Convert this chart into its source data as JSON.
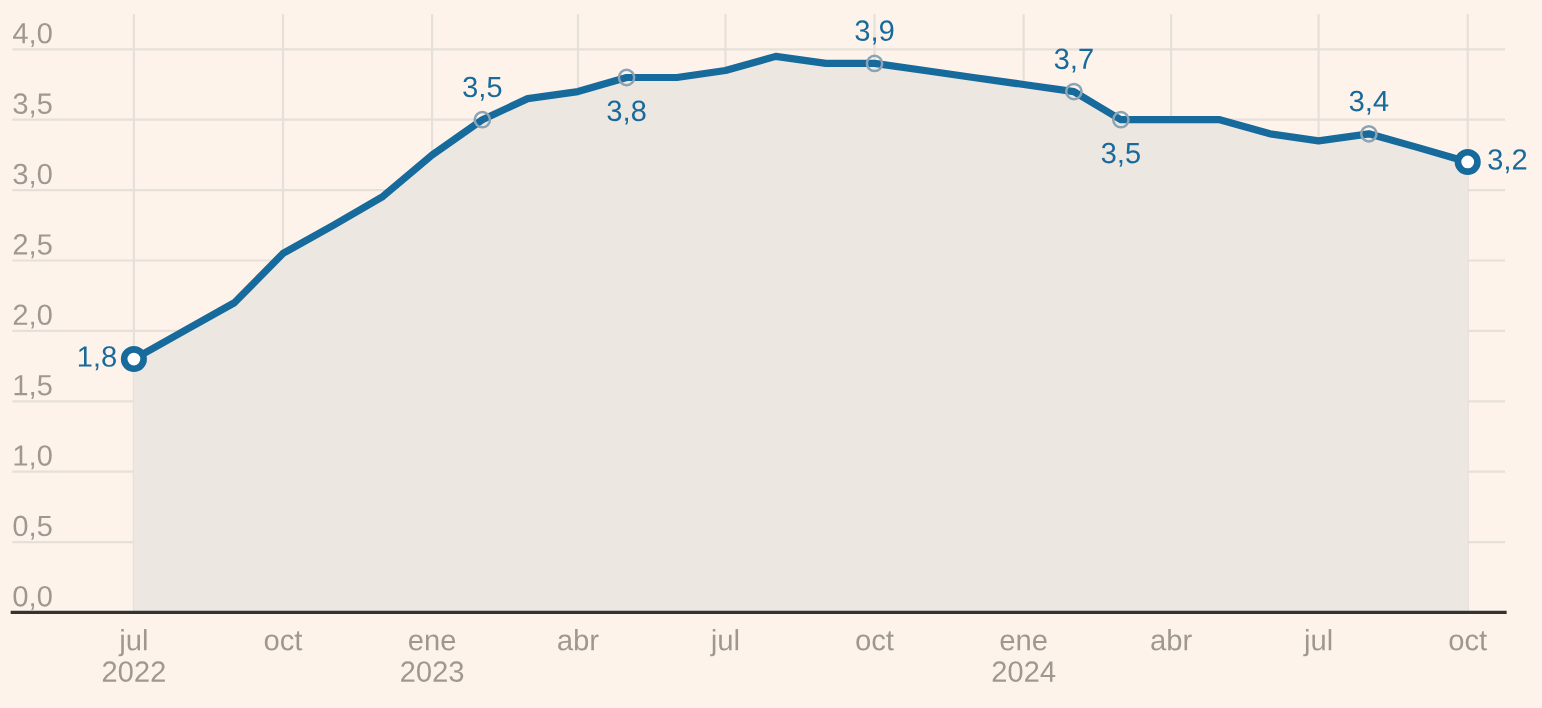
{
  "chart_data": {
    "type": "area",
    "x": [
      "2022-07",
      "2022-08",
      "2022-09",
      "2022-10",
      "2022-11",
      "2022-12",
      "2023-01",
      "2023-02",
      "2023-03",
      "2023-04",
      "2023-05",
      "2023-06",
      "2023-07",
      "2023-08",
      "2023-09",
      "2023-10",
      "2023-11",
      "2023-12",
      "2024-01",
      "2024-02",
      "2024-03",
      "2024-04",
      "2024-05",
      "2024-06",
      "2024-07",
      "2024-08",
      "2024-09",
      "2024-10"
    ],
    "series": [
      {
        "color": "#176a9c",
        "values": [
          1.8,
          2.0,
          2.2,
          2.55,
          2.75,
          2.95,
          3.25,
          3.5,
          3.65,
          3.7,
          3.8,
          3.8,
          3.85,
          3.95,
          3.9,
          3.9,
          3.85,
          3.8,
          3.75,
          3.7,
          3.5,
          3.5,
          3.5,
          3.4,
          3.35,
          3.4,
          3.3,
          3.2
        ],
        "value_labels": [
          "1,8",
          null,
          null,
          null,
          null,
          null,
          null,
          "3,5",
          null,
          null,
          "3,8",
          null,
          null,
          null,
          null,
          "3,9",
          null,
          null,
          null,
          "3,7",
          "3,5",
          null,
          null,
          null,
          null,
          "3,4",
          null,
          "3,2"
        ]
      }
    ],
    "xlim": [
      "2022-04-17",
      "2024-10-24"
    ],
    "xticks": [
      {
        "value": "2022-07",
        "label": "jul\n2022"
      },
      {
        "value": "2022-10",
        "label": "oct"
      },
      {
        "value": "2023-01",
        "label": "ene\n2023"
      },
      {
        "value": "2023-04",
        "label": "abr"
      },
      {
        "value": "2023-07",
        "label": "jul"
      },
      {
        "value": "2023-10",
        "label": "oct"
      },
      {
        "value": "2024-01",
        "label": "ene\n2024"
      },
      {
        "value": "2024-04",
        "label": "abr"
      },
      {
        "value": "2024-07",
        "label": "jul"
      },
      {
        "value": "2024-10",
        "label": "oct"
      }
    ],
    "ylim": [
      0,
      4.25
    ],
    "yticks": [
      {
        "value": 0,
        "label": "0,0"
      },
      {
        "value": 0.5,
        "label": "0,5"
      },
      {
        "value": 1,
        "label": "1,0"
      },
      {
        "value": 1.5,
        "label": "1,5"
      },
      {
        "value": 2,
        "label": "2,0"
      },
      {
        "value": 2.5,
        "label": "2,5"
      },
      {
        "value": 3,
        "label": "3,0"
      },
      {
        "value": 3.5,
        "label": "3,5"
      },
      {
        "value": 4,
        "label": "4,0"
      }
    ],
    "grid": true,
    "line_style": "solid",
    "legend": false
  }
}
